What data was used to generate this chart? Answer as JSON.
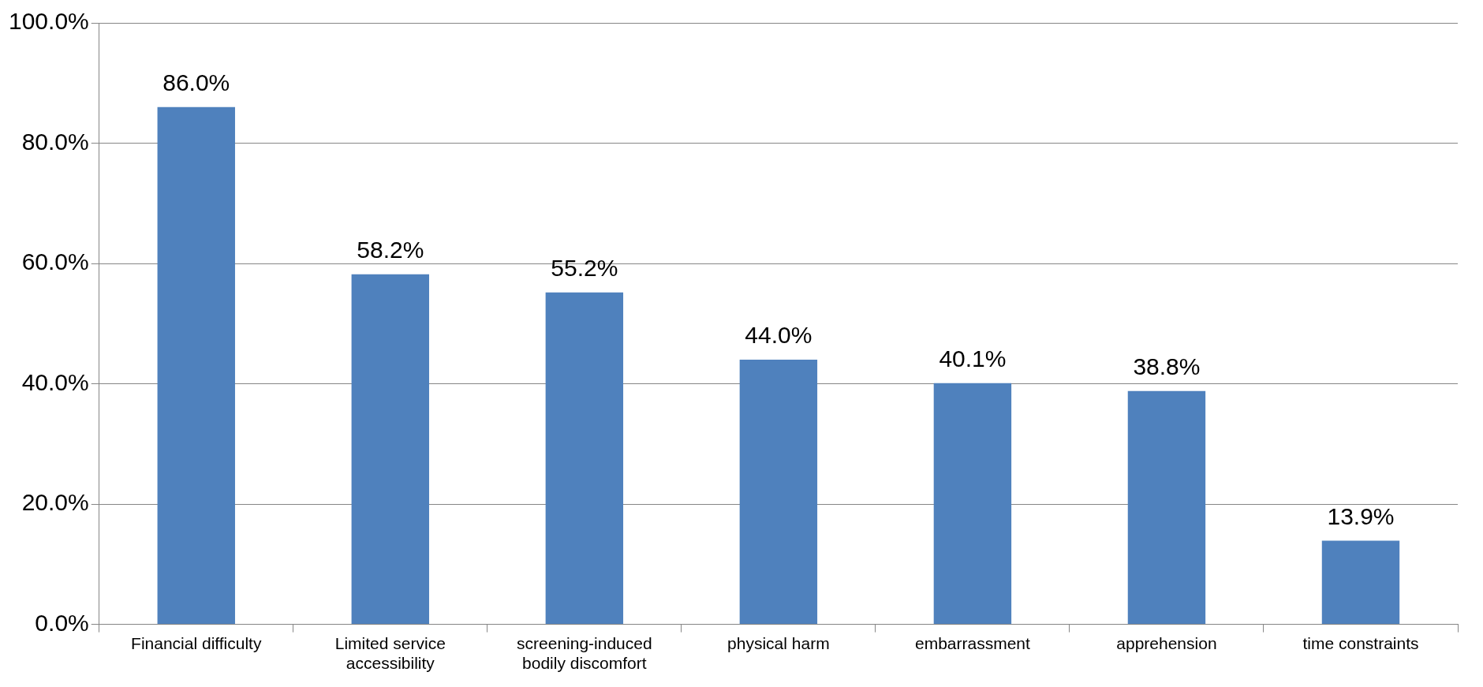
{
  "chart_data": {
    "type": "bar",
    "categories": [
      "Financial difficulty",
      "Limited service accessibility",
      "screening-induced bodily discomfort",
      "physical harm",
      "embarrassment",
      "apprehension",
      "time constraints"
    ],
    "values": [
      86.0,
      58.2,
      55.2,
      44.0,
      40.1,
      38.8,
      13.9
    ],
    "value_labels": [
      "86.0%",
      "58.2%",
      "55.2%",
      "44.0%",
      "40.1%",
      "38.8%",
      "13.9%"
    ],
    "color": "#4f81bd",
    "ylim": [
      0,
      100
    ],
    "yticks": [
      {
        "value": 0,
        "label": "0.0%"
      },
      {
        "value": 20,
        "label": "20.0%"
      },
      {
        "value": 40,
        "label": "40.0%"
      },
      {
        "value": 60,
        "label": "60.0%"
      },
      {
        "value": 80,
        "label": "80.0%"
      },
      {
        "value": 100,
        "label": "100.0%"
      }
    ],
    "grid": "y",
    "legend": false
  }
}
